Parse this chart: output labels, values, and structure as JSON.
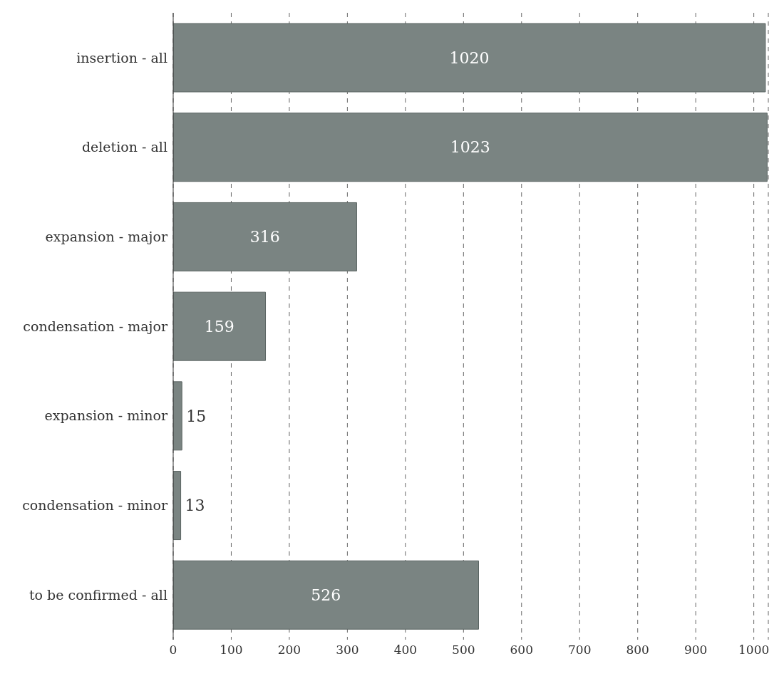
{
  "chart_data": {
    "type": "bar",
    "orientation": "horizontal",
    "categories": [
      "insertion - all",
      "deletion - all",
      "expansion - major",
      "condensation - major",
      "expansion - minor",
      "condensation - minor",
      "to be confirmed - all"
    ],
    "values": [
      1020,
      1023,
      316,
      159,
      15,
      13,
      526
    ],
    "color": "#7a8482",
    "xlim": [
      0,
      1025
    ],
    "xticks": [
      0,
      100,
      200,
      300,
      400,
      500,
      600,
      700,
      800,
      900,
      1000
    ],
    "grid": "x",
    "data_labels": true
  }
}
